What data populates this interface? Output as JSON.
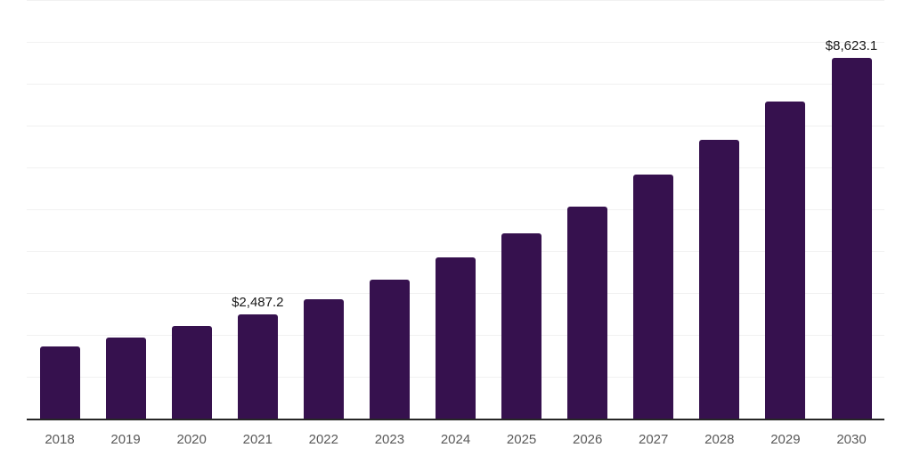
{
  "chart_data": {
    "type": "bar",
    "title": "",
    "xlabel": "",
    "ylabel": "",
    "categories": [
      "2018",
      "2019",
      "2020",
      "2021",
      "2022",
      "2023",
      "2024",
      "2025",
      "2026",
      "2027",
      "2028",
      "2029",
      "2030"
    ],
    "values": [
      1730,
      1945,
      2220,
      2487.2,
      2855,
      3320,
      3850,
      4425,
      5060,
      5825,
      6650,
      7585,
      8623.1
    ],
    "value_labels": {
      "2021": "$2,487.2",
      "2030": "$8,623.1"
    },
    "ylim": [
      0,
      10000
    ],
    "gridline_step": 1000,
    "grid": "horizontal",
    "y_tick_labels_visible": false,
    "legend_position": "none",
    "colors": {
      "bar": "#36114E",
      "axis_line": "#262626",
      "gridline": "#F1F1F1",
      "tick_label": "#595959",
      "value_label": "#1A1A1A",
      "background": "#FFFFFF"
    }
  }
}
